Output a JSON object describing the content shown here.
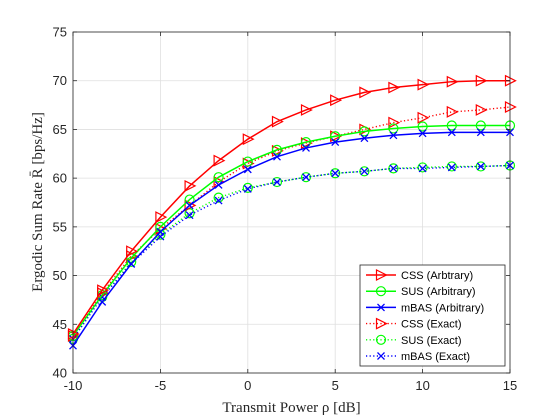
{
  "chart_data": {
    "type": "line",
    "xlabel": "Transmit Power ρ [dB]",
    "ylabel": "Ergodic Sum Rate R̄ [bps/Hz]",
    "xlim": [
      -10,
      15
    ],
    "ylim": [
      40,
      75
    ],
    "xticks": [
      -10,
      -5,
      0,
      5,
      10,
      15
    ],
    "yticks": [
      40,
      45,
      50,
      55,
      60,
      65,
      70,
      75
    ],
    "grid": true,
    "legend_position": "bottom-right",
    "x": [
      -10,
      -8.33,
      -6.67,
      -5,
      -3.33,
      -1.67,
      0,
      1.67,
      3.33,
      5,
      6.67,
      8.33,
      10,
      11.67,
      13.33,
      15
    ],
    "series": [
      {
        "name": "CSS (Arbtrary)",
        "color": "#ff0000",
        "marker": "triangle-right",
        "line": "solid",
        "values": [
          44.0,
          48.5,
          52.5,
          56.0,
          59.2,
          61.8,
          64.0,
          65.8,
          67.0,
          68.0,
          68.8,
          69.3,
          69.6,
          69.9,
          70.0,
          70.0
        ]
      },
      {
        "name": "SUS (Arbitrary)",
        "color": "#00ff00",
        "marker": "circle",
        "line": "solid",
        "values": [
          43.8,
          48.0,
          51.8,
          55.0,
          57.8,
          60.1,
          61.7,
          62.9,
          63.7,
          64.3,
          64.8,
          65.1,
          65.3,
          65.4,
          65.4,
          65.4
        ]
      },
      {
        "name": "mBAS (Arbitrary)",
        "color": "#0000ff",
        "marker": "x",
        "line": "solid",
        "values": [
          42.8,
          47.3,
          51.2,
          54.5,
          57.2,
          59.3,
          60.9,
          62.2,
          63.1,
          63.7,
          64.1,
          64.4,
          64.6,
          64.7,
          64.7,
          64.7
        ]
      },
      {
        "name": "CSS (Exact)",
        "color": "#ff0000",
        "marker": "triangle-right",
        "line": "dotted",
        "values": [
          43.8,
          48.2,
          52.0,
          54.8,
          57.2,
          59.6,
          61.5,
          62.8,
          63.6,
          64.3,
          65.0,
          65.7,
          66.2,
          66.8,
          67.0,
          67.3
        ]
      },
      {
        "name": "SUS (Exact)",
        "color": "#00ff00",
        "marker": "circle",
        "line": "dotted",
        "values": [
          43.5,
          47.8,
          51.4,
          54.2,
          56.4,
          58.0,
          59.0,
          59.6,
          60.1,
          60.5,
          60.7,
          61.0,
          61.1,
          61.2,
          61.2,
          61.3
        ]
      },
      {
        "name": "mBAS (Exact)",
        "color": "#0000ff",
        "marker": "x",
        "line": "dotted",
        "values": [
          43.5,
          47.8,
          51.2,
          54.0,
          56.2,
          57.7,
          58.9,
          59.6,
          60.1,
          60.5,
          60.7,
          61.0,
          61.0,
          61.1,
          61.2,
          61.3
        ]
      }
    ]
  }
}
